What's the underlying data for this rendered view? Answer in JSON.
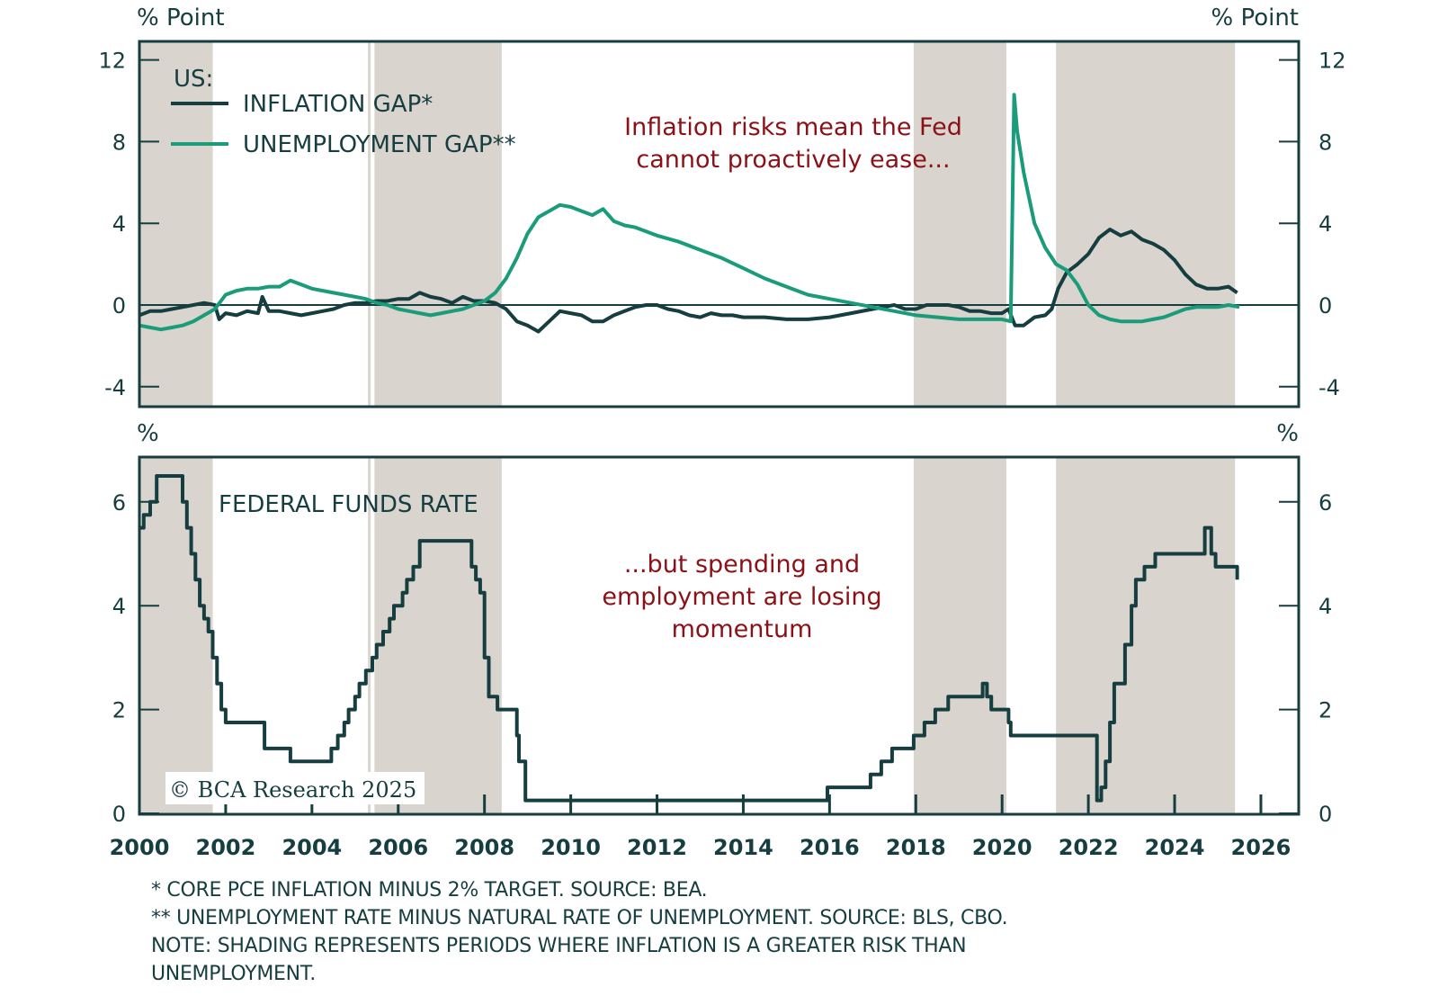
{
  "colors": {
    "inflation": "#163d3f",
    "unemployment": "#1a9c7b",
    "shading": "#d9d4cd",
    "frame": "#163d3f",
    "annotation": "#8b1116"
  },
  "footnotes": [
    "* CORE PCE INFLATION MINUS 2% TARGET. SOURCE: BEA.",
    "** UNEMPLOYMENT RATE MINUS NATURAL RATE OF UNEMPLOYMENT. SOURCE: BLS, CBO.",
    "NOTE: SHADING REPRESENTS PERIODS WHERE INFLATION IS A GREATER RISK THAN",
    "UNEMPLOYMENT."
  ],
  "copyright": "© BCA Research 2025",
  "chart_data": [
    {
      "type": "line",
      "id": "top",
      "ylabel_left": "% Point",
      "ylabel_right": "% Point",
      "ylim": [
        -4.5,
        13
      ],
      "yticks": [
        -4,
        0,
        4,
        8,
        12
      ],
      "xlim": [
        2000,
        2027
      ],
      "legend_title": "US:",
      "legend_placement": "top-left",
      "annotation": [
        "Inflation risks mean the Fed",
        "cannot proactively ease..."
      ],
      "shading": [
        [
          2000.0,
          2001.7
        ],
        [
          2005.45,
          2008.4
        ],
        [
          2017.95,
          2020.1
        ],
        [
          2021.25,
          2025.4
        ]
      ],
      "reference_line": 0,
      "series": [
        {
          "name": "INFLATION GAP*",
          "key": "inflation",
          "x": [
            2000.0,
            2000.25,
            2000.5,
            2000.75,
            2001.0,
            2001.25,
            2001.5,
            2001.75,
            2001.85,
            2002.0,
            2002.25,
            2002.5,
            2002.75,
            2002.85,
            2003.0,
            2003.25,
            2003.5,
            2003.75,
            2004.0,
            2004.25,
            2004.5,
            2004.75,
            2005.0,
            2005.25,
            2005.5,
            2005.75,
            2006.0,
            2006.25,
            2006.5,
            2006.75,
            2007.0,
            2007.25,
            2007.5,
            2007.75,
            2008.0,
            2008.25,
            2008.5,
            2008.75,
            2009.0,
            2009.25,
            2009.5,
            2009.75,
            2010.0,
            2010.25,
            2010.5,
            2010.75,
            2011.0,
            2011.25,
            2011.5,
            2011.75,
            2012.0,
            2012.25,
            2012.5,
            2012.75,
            2013.0,
            2013.25,
            2013.5,
            2013.75,
            2014.0,
            2014.5,
            2015.0,
            2015.5,
            2016.0,
            2016.5,
            2017.0,
            2017.25,
            2017.5,
            2017.75,
            2018.0,
            2018.25,
            2018.5,
            2018.75,
            2019.0,
            2019.25,
            2019.5,
            2019.75,
            2020.0,
            2020.15,
            2020.3,
            2020.5,
            2020.75,
            2021.0,
            2021.15,
            2021.3,
            2021.5,
            2021.75,
            2022.0,
            2022.25,
            2022.5,
            2022.75,
            2023.0,
            2023.25,
            2023.5,
            2023.75,
            2024.0,
            2024.25,
            2024.5,
            2024.75,
            2025.0,
            2025.25,
            2025.45
          ],
          "values": [
            -0.5,
            -0.3,
            -0.3,
            -0.2,
            -0.1,
            0.0,
            0.1,
            0.0,
            -0.7,
            -0.4,
            -0.5,
            -0.3,
            -0.4,
            0.4,
            -0.3,
            -0.3,
            -0.4,
            -0.5,
            -0.4,
            -0.3,
            -0.2,
            0.0,
            0.1,
            0.1,
            0.2,
            0.2,
            0.3,
            0.3,
            0.6,
            0.4,
            0.3,
            0.1,
            0.4,
            0.2,
            0.2,
            0.1,
            -0.2,
            -0.8,
            -1.0,
            -1.3,
            -0.8,
            -0.3,
            -0.4,
            -0.5,
            -0.8,
            -0.8,
            -0.5,
            -0.3,
            -0.1,
            0.0,
            0.0,
            -0.2,
            -0.3,
            -0.5,
            -0.6,
            -0.4,
            -0.5,
            -0.5,
            -0.6,
            -0.6,
            -0.7,
            -0.7,
            -0.6,
            -0.4,
            -0.2,
            -0.1,
            0.0,
            -0.2,
            -0.2,
            0.0,
            0.0,
            0.0,
            -0.1,
            -0.3,
            -0.3,
            -0.4,
            -0.4,
            -0.2,
            -1.0,
            -1.0,
            -0.6,
            -0.5,
            -0.2,
            0.8,
            1.6,
            2.0,
            2.5,
            3.3,
            3.7,
            3.4,
            3.6,
            3.2,
            3.0,
            2.7,
            2.2,
            1.5,
            1.0,
            0.8,
            0.8,
            0.9,
            0.6
          ]
        },
        {
          "name": "UNEMPLOYMENT GAP**",
          "key": "unemployment",
          "x": [
            2000.0,
            2000.25,
            2000.5,
            2000.75,
            2001.0,
            2001.25,
            2001.5,
            2001.75,
            2002.0,
            2002.25,
            2002.5,
            2002.75,
            2003.0,
            2003.25,
            2003.5,
            2003.75,
            2004.0,
            2004.25,
            2004.5,
            2004.75,
            2005.0,
            2005.25,
            2005.5,
            2005.75,
            2006.0,
            2006.25,
            2006.5,
            2006.75,
            2007.0,
            2007.25,
            2007.5,
            2007.75,
            2008.0,
            2008.25,
            2008.5,
            2008.75,
            2009.0,
            2009.25,
            2009.5,
            2009.75,
            2010.0,
            2010.25,
            2010.5,
            2010.75,
            2011.0,
            2011.25,
            2011.5,
            2011.75,
            2012.0,
            2012.5,
            2013.0,
            2013.5,
            2014.0,
            2014.5,
            2015.0,
            2015.5,
            2016.0,
            2016.5,
            2017.0,
            2017.5,
            2018.0,
            2018.5,
            2019.0,
            2019.5,
            2020.0,
            2020.2,
            2020.28,
            2020.35,
            2020.5,
            2020.75,
            2021.0,
            2021.25,
            2021.5,
            2021.75,
            2022.0,
            2022.25,
            2022.5,
            2022.75,
            2023.0,
            2023.25,
            2023.5,
            2023.75,
            2024.0,
            2024.25,
            2024.5,
            2024.75,
            2025.0,
            2025.25,
            2025.5
          ],
          "values": [
            -1.0,
            -1.1,
            -1.2,
            -1.1,
            -1.0,
            -0.8,
            -0.5,
            -0.2,
            0.5,
            0.7,
            0.8,
            0.8,
            0.9,
            0.9,
            1.2,
            1.0,
            0.8,
            0.7,
            0.6,
            0.5,
            0.4,
            0.3,
            0.1,
            0.0,
            -0.2,
            -0.3,
            -0.4,
            -0.5,
            -0.4,
            -0.3,
            -0.2,
            0.0,
            0.2,
            0.6,
            1.3,
            2.3,
            3.5,
            4.3,
            4.6,
            4.9,
            4.8,
            4.6,
            4.4,
            4.7,
            4.1,
            3.9,
            3.8,
            3.6,
            3.4,
            3.1,
            2.7,
            2.3,
            1.8,
            1.3,
            0.9,
            0.5,
            0.3,
            0.1,
            -0.1,
            -0.3,
            -0.5,
            -0.6,
            -0.7,
            -0.7,
            -0.7,
            -0.8,
            10.3,
            8.5,
            6.5,
            4.0,
            2.8,
            2.0,
            1.7,
            1.0,
            0.0,
            -0.5,
            -0.7,
            -0.8,
            -0.8,
            -0.8,
            -0.7,
            -0.6,
            -0.4,
            -0.2,
            -0.1,
            -0.1,
            -0.1,
            0.0,
            -0.1
          ]
        }
      ]
    },
    {
      "type": "line",
      "id": "bottom",
      "ylabel_left": "%",
      "ylabel_right": "%",
      "ylim": [
        0,
        6.9
      ],
      "yticks": [
        0,
        2,
        4,
        6
      ],
      "xlim": [
        2000,
        2027
      ],
      "xticks": [
        2000,
        2002,
        2004,
        2006,
        2008,
        2010,
        2012,
        2014,
        2016,
        2018,
        2020,
        2022,
        2024,
        2026
      ],
      "xtick_labels": [
        "2000",
        "2002",
        "2004",
        "2006",
        "2008",
        "2010",
        "2012",
        "2014",
        "2016",
        "2018",
        "2020",
        "2022",
        "2024",
        "2026"
      ],
      "annotation": [
        "...but spending and",
        "employment are losing",
        "momentum"
      ],
      "shading": [
        [
          2000.0,
          2001.7
        ],
        [
          2005.45,
          2008.4
        ],
        [
          2017.95,
          2020.1
        ],
        [
          2021.25,
          2025.4
        ]
      ],
      "series": [
        {
          "name": "FEDERAL FUNDS RATE",
          "key": "ffr",
          "step": true,
          "x": [
            2000.0,
            2000.1,
            2000.25,
            2000.4,
            2001.0,
            2001.1,
            2001.2,
            2001.3,
            2001.4,
            2001.5,
            2001.6,
            2001.7,
            2001.8,
            2001.9,
            2002.0,
            2002.9,
            2003.5,
            2004.45,
            2004.6,
            2004.75,
            2004.85,
            2005.0,
            2005.1,
            2005.25,
            2005.4,
            2005.5,
            2005.65,
            2005.8,
            2005.9,
            2006.1,
            2006.2,
            2006.35,
            2006.5,
            2007.7,
            2007.8,
            2007.9,
            2008.0,
            2008.1,
            2008.3,
            2008.75,
            2008.8,
            2008.95,
            2009.0,
            2015.95,
            2016.95,
            2017.2,
            2017.45,
            2017.95,
            2018.2,
            2018.45,
            2018.75,
            2019.55,
            2019.65,
            2019.75,
            2020.15,
            2020.2,
            2022.2,
            2022.3,
            2022.4,
            2022.5,
            2022.6,
            2022.85,
            2023.0,
            2023.1,
            2023.3,
            2023.55,
            2024.7,
            2024.85,
            2024.95,
            2025.45
          ],
          "values": [
            5.5,
            5.75,
            6.0,
            6.5,
            6.0,
            5.5,
            5.0,
            4.5,
            4.0,
            3.75,
            3.5,
            3.0,
            2.5,
            2.0,
            1.75,
            1.25,
            1.0,
            1.25,
            1.5,
            1.75,
            2.0,
            2.25,
            2.5,
            2.75,
            3.0,
            3.25,
            3.5,
            3.75,
            4.0,
            4.25,
            4.5,
            4.75,
            5.25,
            4.75,
            4.5,
            4.25,
            3.0,
            2.25,
            2.0,
            1.5,
            1.0,
            0.25,
            0.25,
            0.5,
            0.75,
            1.0,
            1.25,
            1.5,
            1.75,
            2.0,
            2.25,
            2.5,
            2.25,
            2.0,
            1.75,
            1.5,
            0.25,
            0.5,
            1.0,
            1.75,
            2.5,
            3.25,
            4.0,
            4.5,
            4.75,
            5.0,
            5.5,
            5.0,
            4.75,
            4.5
          ]
        }
      ]
    }
  ]
}
